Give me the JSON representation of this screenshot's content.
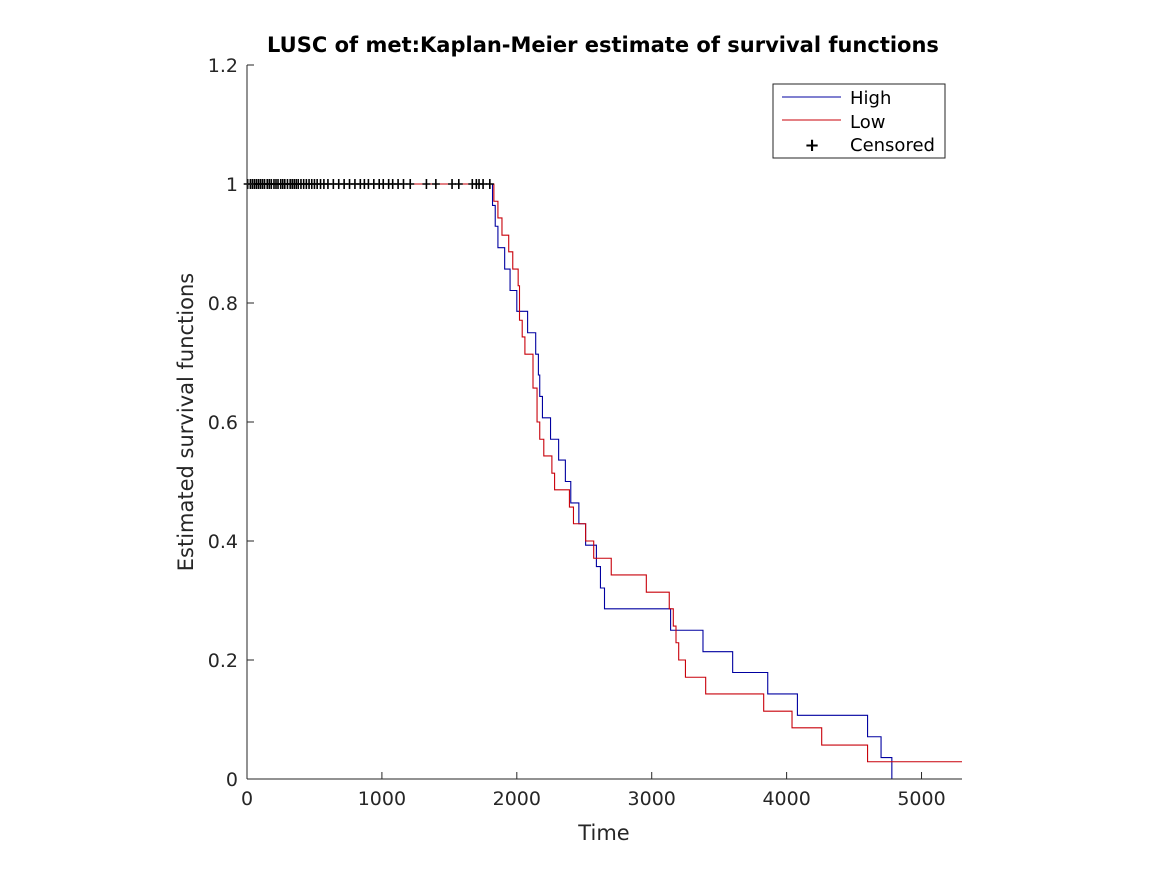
{
  "chart_data": {
    "type": "line",
    "title": "LUSC of met:Kaplan-Meier estimate of survival functions",
    "xlabel": "Time",
    "ylabel": "Estimated survival functions",
    "xlim": [
      0,
      5300
    ],
    "ylim": [
      0,
      1.2
    ],
    "xticks": [
      0,
      1000,
      2000,
      3000,
      4000,
      5000
    ],
    "xtick_labels": [
      "0",
      "1000",
      "2000",
      "3000",
      "4000",
      "5000"
    ],
    "yticks": [
      0,
      0.2,
      0.4,
      0.6,
      0.8,
      1,
      1.2
    ],
    "ytick_labels": [
      "0",
      "0.2",
      "0.4",
      "0.6",
      "0.8",
      "1",
      "1.2"
    ],
    "grid": false,
    "legend_position": "top-right",
    "series": [
      {
        "name": "High",
        "color": "#0000a0",
        "steps": [
          [
            0,
            1
          ],
          [
            1820,
            0.964
          ],
          [
            1840,
            0.929
          ],
          [
            1860,
            0.893
          ],
          [
            1910,
            0.857
          ],
          [
            1950,
            0.821
          ],
          [
            2000,
            0.786
          ],
          [
            2080,
            0.75
          ],
          [
            2140,
            0.714
          ],
          [
            2160,
            0.679
          ],
          [
            2170,
            0.643
          ],
          [
            2190,
            0.607
          ],
          [
            2250,
            0.571
          ],
          [
            2310,
            0.536
          ],
          [
            2360,
            0.5
          ],
          [
            2400,
            0.464
          ],
          [
            2460,
            0.429
          ],
          [
            2510,
            0.393
          ],
          [
            2590,
            0.357
          ],
          [
            2620,
            0.321
          ],
          [
            2650,
            0.286
          ],
          [
            3140,
            0.25
          ],
          [
            3380,
            0.214
          ],
          [
            3600,
            0.179
          ],
          [
            3860,
            0.143
          ],
          [
            4080,
            0.107
          ],
          [
            4600,
            0.071
          ],
          [
            4700,
            0.036
          ],
          [
            4780,
            0
          ]
        ],
        "end": 4780
      },
      {
        "name": "Low",
        "color": "#c8000a",
        "steps": [
          [
            0,
            1
          ],
          [
            1830,
            0.971
          ],
          [
            1860,
            0.943
          ],
          [
            1890,
            0.914
          ],
          [
            1940,
            0.886
          ],
          [
            1970,
            0.857
          ],
          [
            2010,
            0.829
          ],
          [
            2020,
            0.771
          ],
          [
            2040,
            0.743
          ],
          [
            2060,
            0.714
          ],
          [
            2120,
            0.657
          ],
          [
            2150,
            0.6
          ],
          [
            2170,
            0.571
          ],
          [
            2200,
            0.543
          ],
          [
            2260,
            0.514
          ],
          [
            2280,
            0.486
          ],
          [
            2390,
            0.457
          ],
          [
            2420,
            0.429
          ],
          [
            2510,
            0.4
          ],
          [
            2570,
            0.371
          ],
          [
            2700,
            0.343
          ],
          [
            2960,
            0.314
          ],
          [
            3130,
            0.286
          ],
          [
            3160,
            0.257
          ],
          [
            3180,
            0.229
          ],
          [
            3200,
            0.2
          ],
          [
            3250,
            0.171
          ],
          [
            3400,
            0.143
          ],
          [
            3830,
            0.114
          ],
          [
            4040,
            0.086
          ],
          [
            4260,
            0.057
          ],
          [
            4600,
            0.029
          ]
        ],
        "end": 5300
      }
    ],
    "censored": {
      "name": "Censored",
      "marker": "+",
      "color": "#000000",
      "y": 1,
      "x": [
        5,
        25,
        40,
        55,
        70,
        85,
        100,
        115,
        130,
        150,
        165,
        180,
        200,
        215,
        230,
        250,
        265,
        280,
        300,
        320,
        335,
        350,
        365,
        380,
        400,
        420,
        440,
        460,
        480,
        500,
        520,
        545,
        570,
        600,
        640,
        680,
        720,
        760,
        800,
        840,
        870,
        900,
        940,
        980,
        1010,
        1050,
        1080,
        1120,
        1160,
        1210,
        1330,
        1400,
        1520,
        1570,
        1670,
        1700,
        1720,
        1750,
        1800
      ]
    }
  }
}
